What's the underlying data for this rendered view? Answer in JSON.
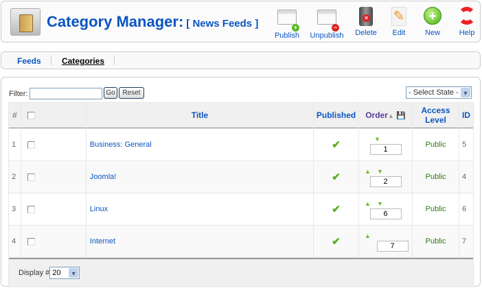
{
  "header": {
    "title": "Category Manager:",
    "subtitle": "[ News Feeds ]"
  },
  "toolbar": [
    {
      "label": "Publish",
      "icon": "publish-icon"
    },
    {
      "label": "Unpublish",
      "icon": "unpublish-icon"
    },
    {
      "label": "Delete",
      "icon": "delete-icon"
    },
    {
      "label": "Edit",
      "icon": "edit-icon"
    },
    {
      "label": "New",
      "icon": "new-icon"
    },
    {
      "label": "Help",
      "icon": "help-icon"
    }
  ],
  "submenu": [
    {
      "label": "Feeds"
    },
    {
      "label": "Categories",
      "active": true
    }
  ],
  "filter": {
    "label": "Filter:",
    "value": "",
    "go": "Go",
    "reset": "Reset",
    "state": "- Select State -"
  },
  "table": {
    "headers": [
      "#",
      "",
      "Title",
      "Published",
      "Order",
      "Access Level",
      "ID"
    ],
    "rows": [
      {
        "num": "1",
        "title": "Business: General",
        "order": "1",
        "access": "Public",
        "id": "5",
        "up": false,
        "down": true
      },
      {
        "num": "2",
        "title": "Joomla!",
        "order": "2",
        "access": "Public",
        "id": "4",
        "up": true,
        "down": true
      },
      {
        "num": "3",
        "title": "Linux",
        "order": "6",
        "access": "Public",
        "id": "6",
        "up": true,
        "down": true
      },
      {
        "num": "4",
        "title": "Internet",
        "order": "7",
        "access": "Public",
        "id": "7",
        "up": true,
        "down": false
      }
    ]
  },
  "footer": {
    "display_label": "Display #",
    "display_value": "20"
  },
  "colors": {
    "link": "#0b55c4",
    "public": "#2f7a10",
    "check": "#5aae1a"
  }
}
